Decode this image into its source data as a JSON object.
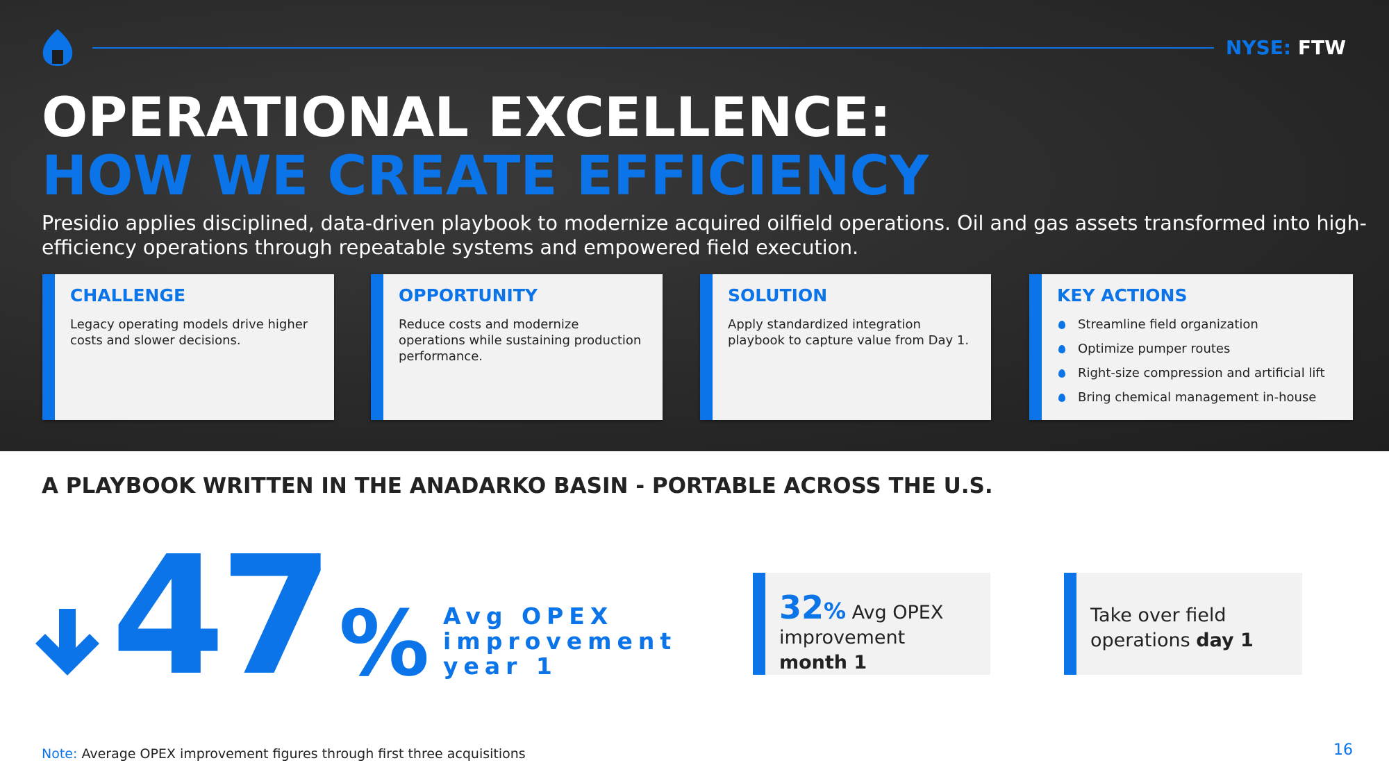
{
  "header": {
    "ticker_label": "NYSE:",
    "ticker": "FTW"
  },
  "title": {
    "line1": "OPERATIONAL EXCELLENCE:",
    "line2": "HOW WE CREATE EFFICIENCY"
  },
  "intro": "Presidio applies disciplined, data-driven playbook to modernize acquired oilfield operations. Oil and gas assets transformed into high-efficiency operations through repeatable systems and empowered field execution.",
  "cards": [
    {
      "title": "CHALLENGE",
      "body": "Legacy operating models drive higher costs and slower decisions."
    },
    {
      "title": "OPPORTUNITY",
      "body": "Reduce costs and modernize operations while sustaining production performance."
    },
    {
      "title": "SOLUTION",
      "body": "Apply standardized integration playbook to capture value from Day 1."
    },
    {
      "title": "KEY ACTIONS",
      "bullets": [
        "Streamline field organization",
        "Optimize pumper routes",
        "Right-size compression and artificial lift",
        "Bring chemical management in-house"
      ]
    }
  ],
  "section_heading": "A PLAYBOOK WRITTEN IN THE ANADARKO BASIN - PORTABLE ACROSS THE U.S.",
  "stats": [
    {
      "value": "47",
      "unit": "%",
      "label": [
        "Avg OPEX",
        "improvement",
        "year 1"
      ]
    },
    {
      "value": "32",
      "unit": "%",
      "label": "Avg OPEX",
      "label2": "improvement",
      "emphasis": "month 1"
    },
    {
      "label": "Take over field operations",
      "emphasis": "day 1"
    }
  ],
  "note": {
    "label": "Note:",
    "text": "Average OPEX improvement figures through first three acquisitions"
  },
  "page_number": "16"
}
